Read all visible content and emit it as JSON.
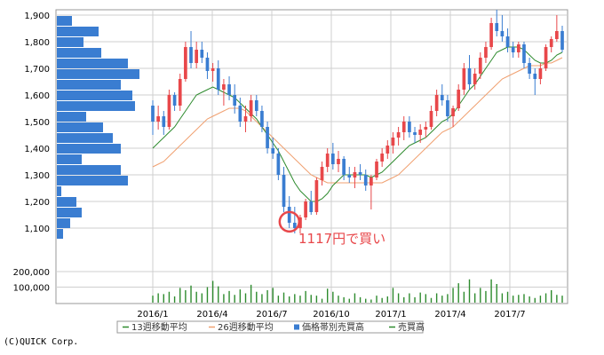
{
  "chart_data": {
    "type": "candlestick",
    "grid": true,
    "colors": {
      "bull": "#e8474a",
      "bear": "#3a7dd1",
      "ma13": "#2e8b2e",
      "ma26": "#f0a070",
      "price_volume": "#3a7dd1",
      "volume": "#2e8b2e",
      "annotation": "#e8474a",
      "grid": "#cfcfcf"
    },
    "x_ticks": [
      "2016/1",
      "2016/4",
      "2016/7",
      "2016/10",
      "2017/1",
      "2017/4",
      "2017/7"
    ],
    "price_axis": {
      "ylim": [
        1050,
        1920
      ],
      "ticks": [
        1100,
        1200,
        1300,
        1400,
        1500,
        1600,
        1700,
        1800,
        1900
      ],
      "tick_labels": [
        "1,100",
        "1,200",
        "1,300",
        "1,400",
        "1,500",
        "1,600",
        "1,700",
        "1,800",
        "1,900"
      ]
    },
    "volume_axis": {
      "ylim": [
        0,
        240000
      ],
      "ticks": [
        100000,
        200000
      ],
      "tick_labels": [
        "100,000",
        "200,000"
      ]
    },
    "price_volume_profile": {
      "levels": [
        1880,
        1840,
        1800,
        1760,
        1720,
        1680,
        1640,
        1600,
        1560,
        1520,
        1480,
        1440,
        1400,
        1360,
        1320,
        1280,
        1240,
        1200,
        1160,
        1120,
        1080
      ],
      "values": [
        17,
        47,
        30,
        50,
        80,
        93,
        72,
        85,
        88,
        33,
        52,
        63,
        72,
        28,
        72,
        80,
        5,
        22,
        28,
        15,
        7
      ]
    },
    "series": [
      {
        "type": "candles",
        "ohlc": [
          [
            1560,
            1580,
            1450,
            1500
          ],
          [
            1500,
            1560,
            1470,
            1520
          ],
          [
            1520,
            1540,
            1450,
            1480
          ],
          [
            1480,
            1620,
            1470,
            1600
          ],
          [
            1600,
            1610,
            1540,
            1560
          ],
          [
            1560,
            1680,
            1540,
            1660
          ],
          [
            1660,
            1800,
            1650,
            1780
          ],
          [
            1780,
            1840,
            1700,
            1720
          ],
          [
            1720,
            1800,
            1700,
            1770
          ],
          [
            1770,
            1800,
            1720,
            1740
          ],
          [
            1740,
            1760,
            1660,
            1690
          ],
          [
            1690,
            1720,
            1650,
            1700
          ],
          [
            1700,
            1730,
            1600,
            1620
          ],
          [
            1620,
            1660,
            1560,
            1640
          ],
          [
            1640,
            1670,
            1580,
            1600
          ],
          [
            1600,
            1640,
            1530,
            1560
          ],
          [
            1560,
            1590,
            1480,
            1500
          ],
          [
            1500,
            1560,
            1460,
            1520
          ],
          [
            1520,
            1600,
            1500,
            1580
          ],
          [
            1580,
            1600,
            1520,
            1540
          ],
          [
            1540,
            1560,
            1460,
            1480
          ],
          [
            1480,
            1500,
            1380,
            1400
          ],
          [
            1400,
            1440,
            1360,
            1380
          ],
          [
            1380,
            1400,
            1280,
            1300
          ],
          [
            1300,
            1330,
            1160,
            1180
          ],
          [
            1180,
            1220,
            1100,
            1120
          ],
          [
            1120,
            1180,
            1080,
            1100
          ],
          [
            1100,
            1150,
            1080,
            1140
          ],
          [
            1140,
            1210,
            1130,
            1200
          ],
          [
            1200,
            1240,
            1150,
            1160
          ],
          [
            1160,
            1290,
            1150,
            1280
          ],
          [
            1280,
            1350,
            1260,
            1330
          ],
          [
            1330,
            1400,
            1310,
            1380
          ],
          [
            1380,
            1420,
            1320,
            1340
          ],
          [
            1340,
            1390,
            1310,
            1360
          ],
          [
            1360,
            1370,
            1280,
            1300
          ],
          [
            1300,
            1330,
            1270,
            1290
          ],
          [
            1290,
            1330,
            1250,
            1310
          ],
          [
            1310,
            1340,
            1280,
            1300
          ],
          [
            1300,
            1320,
            1240,
            1260
          ],
          [
            1260,
            1300,
            1170,
            1290
          ],
          [
            1290,
            1360,
            1280,
            1350
          ],
          [
            1350,
            1400,
            1330,
            1380
          ],
          [
            1380,
            1430,
            1360,
            1410
          ],
          [
            1410,
            1460,
            1380,
            1440
          ],
          [
            1440,
            1480,
            1410,
            1460
          ],
          [
            1460,
            1520,
            1430,
            1500
          ],
          [
            1500,
            1520,
            1440,
            1460
          ],
          [
            1460,
            1480,
            1420,
            1450
          ],
          [
            1450,
            1490,
            1420,
            1470
          ],
          [
            1470,
            1500,
            1440,
            1480
          ],
          [
            1480,
            1560,
            1470,
            1540
          ],
          [
            1540,
            1620,
            1520,
            1600
          ],
          [
            1600,
            1640,
            1560,
            1580
          ],
          [
            1580,
            1600,
            1500,
            1520
          ],
          [
            1520,
            1560,
            1480,
            1550
          ],
          [
            1550,
            1640,
            1540,
            1620
          ],
          [
            1620,
            1720,
            1600,
            1700
          ],
          [
            1700,
            1750,
            1620,
            1640
          ],
          [
            1640,
            1700,
            1620,
            1680
          ],
          [
            1680,
            1760,
            1660,
            1740
          ],
          [
            1740,
            1800,
            1720,
            1780
          ],
          [
            1780,
            1890,
            1770,
            1870
          ],
          [
            1870,
            1920,
            1820,
            1840
          ],
          [
            1840,
            1900,
            1800,
            1820
          ],
          [
            1820,
            1850,
            1760,
            1780
          ],
          [
            1780,
            1800,
            1740,
            1760
          ],
          [
            1760,
            1800,
            1740,
            1790
          ],
          [
            1790,
            1800,
            1700,
            1720
          ],
          [
            1720,
            1740,
            1660,
            1680
          ],
          [
            1680,
            1700,
            1600,
            1660
          ],
          [
            1660,
            1720,
            1640,
            1700
          ],
          [
            1700,
            1790,
            1690,
            1780
          ],
          [
            1780,
            1820,
            1760,
            1810
          ],
          [
            1810,
            1900,
            1800,
            1840
          ],
          [
            1840,
            1860,
            1760,
            1770
          ]
        ]
      },
      {
        "type": "line",
        "role": "ma13",
        "values": [
          1400,
          1420,
          1440,
          1460,
          1480,
          1510,
          1540,
          1570,
          1600,
          1610,
          1620,
          1630,
          1620,
          1610,
          1600,
          1590,
          1570,
          1550,
          1530,
          1510,
          1480,
          1450,
          1420,
          1390,
          1350,
          1310,
          1270,
          1240,
          1220,
          1200,
          1200,
          1210,
          1230,
          1260,
          1280,
          1300,
          1300,
          1300,
          1300,
          1300,
          1290,
          1300,
          1310,
          1330,
          1350,
          1370,
          1390,
          1410,
          1420,
          1430,
          1440,
          1460,
          1480,
          1500,
          1510,
          1530,
          1560,
          1590,
          1620,
          1640,
          1670,
          1700,
          1730,
          1760,
          1770,
          1780,
          1780,
          1780,
          1770,
          1750,
          1730,
          1720,
          1720,
          1730,
          1750,
          1760
        ]
      },
      {
        "type": "line",
        "role": "ma26",
        "values": [
          1330,
          1340,
          1350,
          1370,
          1390,
          1410,
          1430,
          1450,
          1470,
          1490,
          1510,
          1520,
          1530,
          1540,
          1550,
          1550,
          1550,
          1540,
          1520,
          1500,
          1480,
          1460,
          1440,
          1420,
          1400,
          1380,
          1360,
          1340,
          1320,
          1300,
          1290,
          1280,
          1270,
          1270,
          1270,
          1270,
          1270,
          1270,
          1270,
          1270,
          1270,
          1270,
          1270,
          1280,
          1290,
          1300,
          1320,
          1340,
          1360,
          1380,
          1400,
          1420,
          1440,
          1460,
          1470,
          1480,
          1500,
          1520,
          1540,
          1560,
          1580,
          1600,
          1620,
          1640,
          1660,
          1670,
          1680,
          1690,
          1700,
          1710,
          1710,
          1710,
          1720,
          1720,
          1730,
          1740
        ]
      },
      {
        "type": "bar",
        "role": "volume",
        "values": [
          45000,
          60000,
          55000,
          70000,
          40000,
          95000,
          80000,
          110000,
          70000,
          60000,
          100000,
          140000,
          105000,
          55000,
          75000,
          50000,
          85000,
          60000,
          115000,
          70000,
          55000,
          80000,
          95000,
          45000,
          65000,
          40000,
          55000,
          45000,
          75000,
          50000,
          45000,
          25000,
          90000,
          70000,
          45000,
          35000,
          25000,
          60000,
          35000,
          25000,
          20000,
          45000,
          30000,
          40000,
          95000,
          60000,
          35000,
          60000,
          35000,
          65000,
          55000,
          30000,
          60000,
          45000,
          55000,
          95000,
          125000,
          70000,
          150000,
          60000,
          95000,
          75000,
          150000,
          120000,
          60000,
          70000,
          45000,
          50000,
          55000,
          40000,
          30000,
          45000,
          60000,
          80000,
          50000,
          45000
        ]
      }
    ],
    "legend": [
      {
        "label": "13週移動平均",
        "marker": "line"
      },
      {
        "label": "26週移動平均",
        "marker": "line"
      },
      {
        "label": "価格帯別売買高",
        "marker": "bar"
      },
      {
        "label": "売買高",
        "marker": "line"
      }
    ],
    "annotation": {
      "text": "1117円で買い",
      "x_index": 26,
      "y": 1117
    },
    "copyright": "(C)QUICK Corp."
  }
}
